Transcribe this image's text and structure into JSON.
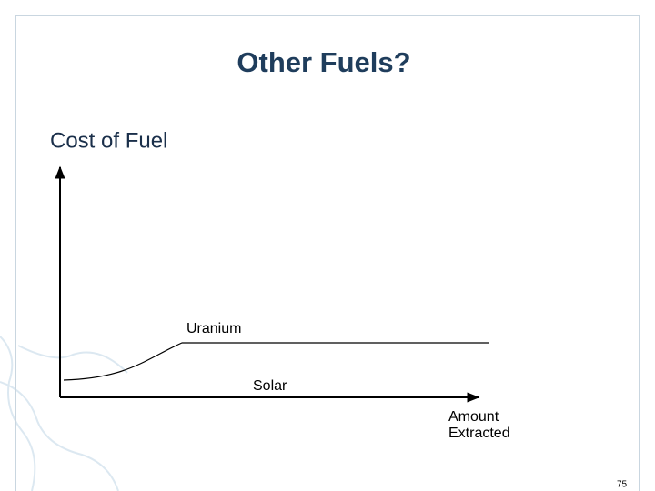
{
  "slide": {
    "title": "Other Fuels?",
    "y_axis_label": "Cost of Fuel",
    "curve_labels": [
      "Uranium",
      "Solar"
    ],
    "x_axis_label": [
      "Amount",
      "Extracted"
    ],
    "page_number": "75"
  }
}
